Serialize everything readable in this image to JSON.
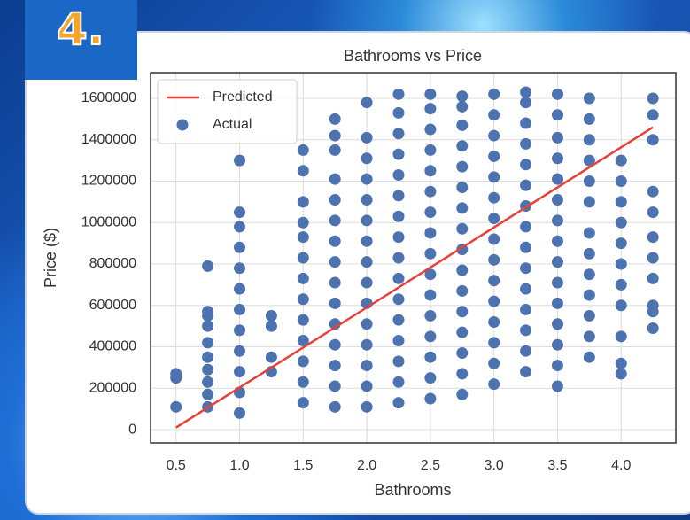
{
  "slide_number": "4.",
  "chart_data": {
    "type": "scatter",
    "title": "Bathrooms vs Price",
    "x_label": "Bathrooms",
    "y_label": "Price ($)",
    "xlim": [
      0.3,
      4.43
    ],
    "ylim": [
      -64000,
      1724000
    ],
    "xticks": [
      0.5,
      {
        "value": 1,
        "label": "1.0"
      },
      1.5,
      {
        "value": 2,
        "label": "2.0"
      },
      2.5,
      {
        "value": 3,
        "label": "3.0"
      },
      3.5,
      {
        "value": 4,
        "label": "4.0"
      }
    ],
    "yticks": [
      0,
      200000,
      400000,
      600000,
      800000,
      1000000,
      1200000,
      1400000,
      1600000
    ],
    "grid": true,
    "legend": "upper-left",
    "series": [
      {
        "name": "Predicted",
        "mode": "line",
        "color": "#e8413a",
        "x": [
          0.5,
          4.25
        ],
        "values": [
          10000,
          1460000
        ]
      },
      {
        "name": "Actual",
        "mode": "markers",
        "color": "#4c72b0",
        "x": [
          0.5,
          0.5,
          0.5,
          0.75,
          0.75,
          0.75,
          0.75,
          0.75,
          0.75,
          0.75,
          0.75,
          0.75,
          0.75,
          1,
          1,
          1,
          1,
          1,
          1,
          1,
          1,
          1,
          1,
          1,
          1,
          1.25,
          1.25,
          1.25,
          1.25,
          1.5,
          1.5,
          1.5,
          1.5,
          1.5,
          1.5,
          1.5,
          1.5,
          1.5,
          1.5,
          1.5,
          1.5,
          1.5,
          1.75,
          1.75,
          1.75,
          1.75,
          1.75,
          1.75,
          1.75,
          1.75,
          1.75,
          1.75,
          1.75,
          1.75,
          1.75,
          1.75,
          1.75,
          2,
          2,
          2,
          2,
          2,
          2,
          2,
          2,
          2,
          2,
          2,
          2,
          2,
          2,
          2,
          2.25,
          2.25,
          2.25,
          2.25,
          2.25,
          2.25,
          2.25,
          2.25,
          2.25,
          2.25,
          2.25,
          2.25,
          2.25,
          2.25,
          2.25,
          2.25,
          2.5,
          2.5,
          2.5,
          2.5,
          2.5,
          2.5,
          2.5,
          2.5,
          2.5,
          2.5,
          2.5,
          2.5,
          2.5,
          2.5,
          2.5,
          2.5,
          2.75,
          2.75,
          2.75,
          2.75,
          2.75,
          2.75,
          2.75,
          2.75,
          2.75,
          2.75,
          2.75,
          2.75,
          2.75,
          2.75,
          2.75,
          2.75,
          3,
          3,
          3,
          3,
          3,
          3,
          3,
          3,
          3,
          3,
          3,
          3,
          3,
          3,
          3,
          3.25,
          3.25,
          3.25,
          3.25,
          3.25,
          3.25,
          3.25,
          3.25,
          3.25,
          3.25,
          3.25,
          3.25,
          3.25,
          3.25,
          3.25,
          3.5,
          3.5,
          3.5,
          3.5,
          3.5,
          3.5,
          3.5,
          3.5,
          3.5,
          3.5,
          3.5,
          3.5,
          3.5,
          3.5,
          3.5,
          3.75,
          3.75,
          3.75,
          3.75,
          3.75,
          3.75,
          3.75,
          3.75,
          3.75,
          3.75,
          3.75,
          3.75,
          3.75,
          4,
          4,
          4,
          4,
          4,
          4,
          4,
          4,
          4,
          4,
          4,
          4.25,
          4.25,
          4.25,
          4.25,
          4.25,
          4.25,
          4.25,
          4.25,
          4.25,
          4.25,
          4.25
        ],
        "values": [
          110000,
          250000,
          270000,
          110000,
          170000,
          230000,
          290000,
          350000,
          420000,
          500000,
          550000,
          570000,
          790000,
          80000,
          180000,
          280000,
          380000,
          480000,
          580000,
          680000,
          780000,
          880000,
          980000,
          1050000,
          1300000,
          280000,
          350000,
          500000,
          550000,
          130000,
          230000,
          330000,
          430000,
          530000,
          630000,
          730000,
          830000,
          930000,
          1000000,
          1100000,
          1250000,
          1350000,
          110000,
          210000,
          310000,
          410000,
          510000,
          610000,
          710000,
          810000,
          910000,
          1010000,
          1110000,
          1210000,
          1350000,
          1420000,
          1500000,
          110000,
          210000,
          310000,
          410000,
          510000,
          610000,
          710000,
          810000,
          910000,
          1010000,
          1110000,
          1210000,
          1310000,
          1410000,
          1580000,
          130000,
          230000,
          330000,
          430000,
          530000,
          630000,
          730000,
          830000,
          930000,
          1030000,
          1130000,
          1230000,
          1330000,
          1430000,
          1530000,
          1620000,
          150000,
          250000,
          350000,
          450000,
          550000,
          650000,
          750000,
          850000,
          950000,
          1050000,
          1150000,
          1250000,
          1350000,
          1450000,
          1550000,
          1620000,
          170000,
          270000,
          370000,
          470000,
          570000,
          670000,
          770000,
          870000,
          970000,
          1070000,
          1170000,
          1270000,
          1370000,
          1470000,
          1560000,
          1610000,
          220000,
          320000,
          420000,
          520000,
          620000,
          720000,
          820000,
          920000,
          1020000,
          1120000,
          1220000,
          1320000,
          1420000,
          1520000,
          1620000,
          280000,
          380000,
          480000,
          580000,
          680000,
          780000,
          880000,
          980000,
          1080000,
          1180000,
          1280000,
          1380000,
          1480000,
          1580000,
          1630000,
          210000,
          310000,
          410000,
          510000,
          610000,
          710000,
          810000,
          910000,
          1010000,
          1110000,
          1210000,
          1310000,
          1410000,
          1520000,
          1620000,
          350000,
          450000,
          550000,
          650000,
          750000,
          850000,
          950000,
          1100000,
          1200000,
          1300000,
          1400000,
          1500000,
          1600000,
          270000,
          320000,
          450000,
          600000,
          700000,
          800000,
          900000,
          1000000,
          1100000,
          1200000,
          1300000,
          490000,
          570000,
          600000,
          730000,
          830000,
          930000,
          1050000,
          1150000,
          1400000,
          1520000,
          1600000
        ]
      }
    ]
  }
}
